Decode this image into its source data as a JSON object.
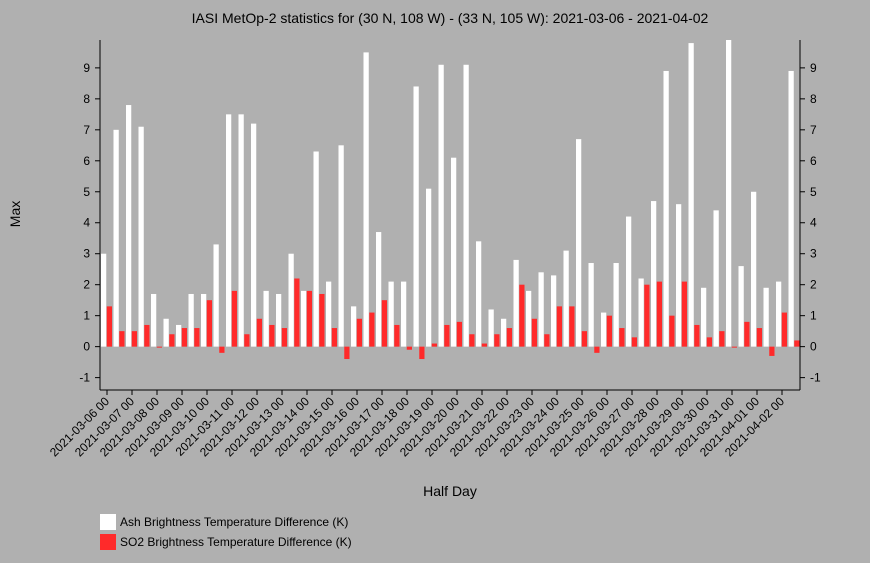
{
  "chart_data": {
    "type": "bar",
    "title": "IASI MetOp-2 statistics for (30 N, 108 W) - (33 N, 105 W): 2021-03-06 - 2021-04-02",
    "xlabel": "Half Day",
    "ylabel": "Max",
    "ylim": [
      -1.4,
      9.9
    ],
    "yticks": [
      -1,
      0,
      1,
      2,
      3,
      4,
      5,
      6,
      7,
      8,
      9
    ],
    "xtick_labels": [
      "2021-03-06 00",
      "2021-03-07 00",
      "2021-03-08 00",
      "2021-03-09 00",
      "2021-03-10 00",
      "2021-03-11 00",
      "2021-03-12 00",
      "2021-03-13 00",
      "2021-03-14 00",
      "2021-03-15 00",
      "2021-03-16 00",
      "2021-03-17 00",
      "2021-03-18 00",
      "2021-03-19 00",
      "2021-03-20 00",
      "2021-03-21 00",
      "2021-03-22 00",
      "2021-03-23 00",
      "2021-03-24 00",
      "2021-03-25 00",
      "2021-03-26 00",
      "2021-03-27 00",
      "2021-03-28 00",
      "2021-03-29 00",
      "2021-03-30 00",
      "2021-03-31 00",
      "2021-04-01 00",
      "2021-04-02 00"
    ],
    "grid": false,
    "legend_position": "bottom-left",
    "series": [
      {
        "name": "Ash Brightness Temperature Difference (K)",
        "color": "#ffffff",
        "values": [
          3.0,
          7.0,
          7.8,
          7.1,
          1.7,
          0.9,
          0.7,
          1.7,
          1.7,
          3.3,
          7.5,
          7.5,
          7.2,
          1.8,
          1.7,
          3.0,
          1.8,
          6.3,
          2.1,
          6.5,
          1.3,
          9.5,
          3.7,
          2.1,
          2.1,
          8.4,
          5.1,
          9.1,
          6.1,
          9.1,
          3.4,
          1.2,
          0.9,
          2.8,
          1.8,
          2.4,
          2.3,
          3.1,
          6.7,
          2.7,
          1.1,
          2.7,
          4.2,
          2.2,
          4.7,
          8.9,
          4.6,
          9.8,
          1.9,
          4.4,
          9.9,
          2.6,
          5.0,
          1.9,
          2.1,
          8.9
        ]
      },
      {
        "name": "SO2 Brightness Temperature Difference (K)",
        "color": "#ff2a2a",
        "values": [
          1.3,
          0.5,
          0.5,
          0.7,
          0.0,
          0.4,
          0.6,
          0.6,
          1.5,
          -0.2,
          1.8,
          0.4,
          0.9,
          0.7,
          0.6,
          2.2,
          1.8,
          1.7,
          0.6,
          -0.4,
          0.9,
          1.1,
          1.5,
          0.7,
          -0.1,
          -0.4,
          0.1,
          0.7,
          0.8,
          0.4,
          0.1,
          0.4,
          0.6,
          2.0,
          0.9,
          0.4,
          1.3,
          1.3,
          0.5,
          -0.2,
          1.0,
          0.6,
          0.3,
          2.0,
          2.1,
          1.0,
          2.1,
          0.7,
          0.3,
          0.5,
          0.0,
          0.8,
          0.6,
          -0.3,
          1.1,
          0.2
        ]
      }
    ]
  }
}
